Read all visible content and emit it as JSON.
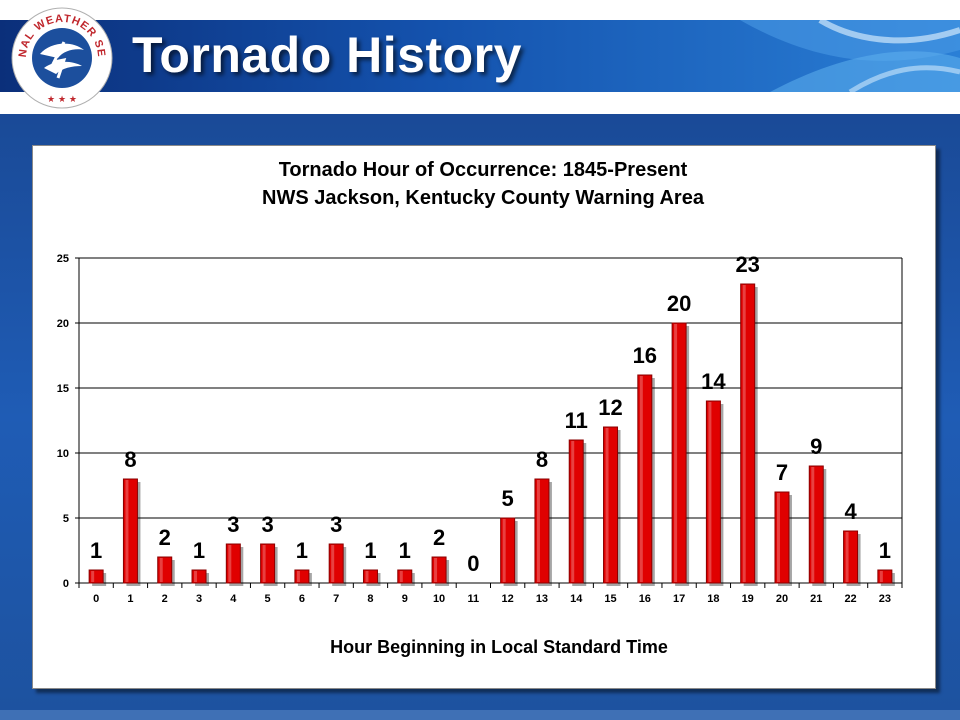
{
  "header": {
    "title": "Tornado History",
    "logo_text": "NATIONAL WEATHER SERVICE"
  },
  "colors": {
    "bar": "#e00000",
    "bar_dark": "#8a0000",
    "banner": "#1452ad",
    "background": "#1e4f9c"
  },
  "chart_data": {
    "type": "bar",
    "title": "Tornado Hour of Occurrence:  1845-Present",
    "subtitle": "NWS Jackson, Kentucky County Warning Area",
    "xlabel": "Hour Beginning in Local Standard Time",
    "ylabel": "",
    "ylim": [
      0,
      25
    ],
    "yticks": [
      0,
      5,
      10,
      15,
      20,
      25
    ],
    "grid": true,
    "legend": "none",
    "categories": [
      "0",
      "1",
      "2",
      "3",
      "4",
      "5",
      "6",
      "7",
      "8",
      "9",
      "10",
      "11",
      "12",
      "13",
      "14",
      "15",
      "16",
      "17",
      "18",
      "19",
      "20",
      "21",
      "22",
      "23"
    ],
    "values": [
      1,
      8,
      2,
      1,
      3,
      3,
      1,
      3,
      1,
      1,
      2,
      0,
      5,
      8,
      11,
      12,
      16,
      20,
      14,
      23,
      7,
      9,
      4,
      1
    ]
  }
}
